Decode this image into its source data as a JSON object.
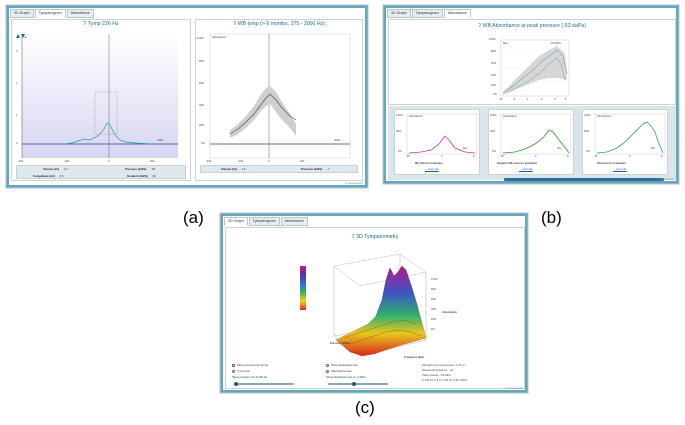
{
  "window_a": {
    "tabs": [
      "3D Graph",
      "Tympanogram",
      "Absorbance"
    ],
    "active_tab": 1,
    "tymp_panel": {
      "title": "Tymp 226 Hz",
      "y_unit": "ml",
      "y_ticks": [
        "3",
        "2",
        "1",
        "0"
      ],
      "x_ticks": [
        "-400",
        "-200",
        "0",
        "200"
      ],
      "x_unit": "daPa",
      "stats": [
        {
          "label": "Volume (ml)",
          "value": "1.2"
        },
        {
          "label": "Pressure (daPa)",
          "value": "-53"
        },
        {
          "label": "Compliance (ml)",
          "value": "0.5"
        },
        {
          "label": "Gradient (daPa)",
          "value": "90"
        }
      ]
    },
    "wb_panel": {
      "title": "WB tymp (> 6 months, 375 - 2000 Hz)",
      "y_label": "Absorbance",
      "y_ticks": [
        "100%",
        "80%",
        "60%",
        "40%",
        "20%",
        "0%"
      ],
      "x_ticks": [
        "-400",
        "-200",
        "0",
        "200"
      ],
      "x_unit": "daPa",
      "stats": [
        {
          "label": "Volume (ml)",
          "value": "1.2"
        },
        {
          "label": "Pressure (daPa)",
          "value": "-7"
        }
      ]
    }
  },
  "window_b": {
    "tabs": [
      "3D Graph",
      "Tympanogram",
      "Absorbance"
    ],
    "active_tab": 2,
    "top_panel": {
      "title": "WB Absorbance at peak pressure (-53 daPa)",
      "y_ticks": [
        "100%",
        "80%",
        "60%",
        "40%",
        "20%",
        "0%"
      ],
      "x_ticks": [
        ".25",
        ".5",
        "1",
        "2",
        "4",
        "8"
      ],
      "legend": [
        "Max",
        "0%-90%"
      ]
    },
    "examples": [
      {
        "y_label": "Absorbance",
        "title": "ME effusion (example)",
        "more": "... more info",
        "color": "#d6339b"
      },
      {
        "y_label": "Absorbance",
        "title": "Negative ME pressure (example)",
        "more": "... more info",
        "color": "#2f9a2c"
      },
      {
        "y_label": "Absorbance",
        "title": "Otosclerosis (example)",
        "more": "... more info",
        "color": "#2a9a88"
      }
    ],
    "example_y_ticks": [
      "100%",
      "80%",
      "60%",
      "40%",
      "20%",
      "0%"
    ],
    "example_x_ticks": [
      ".25",
      ".5",
      "1",
      "2",
      "4",
      "8"
    ],
    "example_unit": "kHz"
  },
  "window_c": {
    "tabs": [
      "3D Graph",
      "Tympanogram",
      "Absorbance"
    ],
    "active_tab": 0,
    "title": "3D Tympanometry",
    "axis_pressure": "Pressure (daPa)",
    "axis_frequency": "Frequency (kHz)",
    "axis_absorbance": "Absorbance",
    "z_ticks": [
      "100%",
      "80%",
      "60%",
      "40%",
      "20%",
      "0%"
    ],
    "options_left": [
      {
        "type": "check",
        "label": "Show pressure line (tymp)",
        "checked": false
      },
      {
        "type": "radio",
        "label": "Tymp view",
        "checked": false
      },
      {
        "type": "text",
        "label": "Show pressure line at 226 Hz"
      }
    ],
    "options_mid": [
      {
        "type": "radio",
        "label": "Show absorbance line",
        "checked": true
      },
      {
        "type": "radio",
        "label": "Absorbance view",
        "checked": false
      },
      {
        "type": "text",
        "label": "Show absorbance line at -7 daPa"
      }
    ],
    "info_lines": [
      "Equivalent ear canal volume: 1.20 ml",
      "Resonance frequency: - Hz",
      "Peak pressure: -53 daPa",
      "3: 226 Hz: 0.5 ml / 226 Hz (1.84 mmho)"
    ]
  },
  "footer_mark": "© Interacoustics",
  "captions": [
    "(a)",
    "(b)",
    "(c)"
  ],
  "colors": {
    "accent": "#1b6f8a",
    "frame": "#5da9c0",
    "plot_bg": "#e9e9f8"
  }
}
